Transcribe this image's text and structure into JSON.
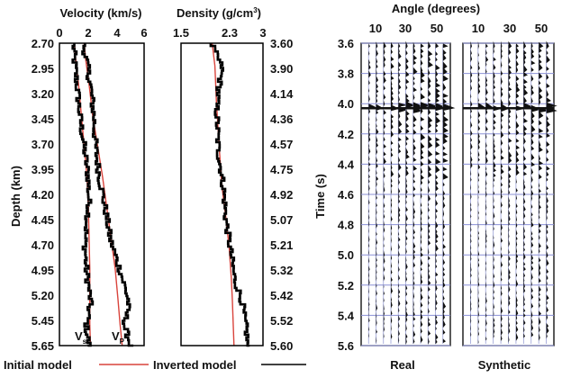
{
  "chart_data": [
    {
      "type": "line",
      "title": "Velocity (km/s)",
      "xlim": [
        0,
        6
      ],
      "xticks": [
        "0",
        "2",
        "4",
        "6"
      ],
      "ylabel": "Depth (km)",
      "ylim": [
        2.7,
        5.65
      ],
      "yticks": [
        "2.70",
        "2.95",
        "3.20",
        "3.45",
        "3.70",
        "3.95",
        "4.20",
        "4.45",
        "4.70",
        "4.95",
        "5.20",
        "5.45",
        "5.65"
      ],
      "series": [
        {
          "name": "Vs",
          "label_base": "V",
          "label_sub": "s",
          "kind": "initial",
          "color": "#d9443c",
          "x": [
            1.05,
            1.15,
            1.35,
            1.55,
            1.75,
            1.95,
            2.05,
            2.1,
            2.15,
            2.15,
            2.15,
            2.2
          ],
          "y": [
            2.7,
            2.85,
            3.1,
            3.4,
            3.7,
            4.0,
            4.3,
            4.6,
            4.9,
            5.2,
            5.45,
            5.65
          ]
        },
        {
          "name": "Vs inverted",
          "kind": "inverted",
          "color": "#000000",
          "x": [
            1.0,
            1.05,
            1.25,
            1.45,
            1.75,
            2.05,
            2.1,
            1.8,
            1.9,
            2.2,
            1.9,
            2.1
          ],
          "y": [
            2.7,
            2.85,
            3.1,
            3.4,
            3.7,
            4.0,
            4.3,
            4.6,
            4.9,
            5.2,
            5.45,
            5.65
          ]
        },
        {
          "name": "Vp",
          "label_base": "V",
          "label_sub": "P",
          "kind": "initial",
          "color": "#d9443c",
          "x": [
            1.75,
            1.85,
            2.1,
            2.35,
            2.7,
            3.05,
            3.35,
            3.65,
            3.95,
            4.15,
            4.3,
            4.45
          ],
          "y": [
            2.7,
            2.85,
            3.1,
            3.4,
            3.7,
            4.0,
            4.3,
            4.6,
            4.9,
            5.2,
            5.45,
            5.65
          ]
        },
        {
          "name": "Vp inverted",
          "kind": "inverted",
          "color": "#000000",
          "x": [
            1.7,
            1.9,
            2.2,
            2.45,
            2.55,
            2.85,
            3.25,
            3.6,
            4.3,
            4.9,
            4.6,
            5.1
          ],
          "y": [
            2.7,
            2.85,
            3.1,
            3.4,
            3.7,
            4.0,
            4.3,
            4.6,
            4.9,
            5.2,
            5.45,
            5.65
          ]
        }
      ]
    },
    {
      "type": "line",
      "title_base": "Density (g/cm",
      "title_sup": "3",
      "title_end": ")",
      "xlim": [
        1.5,
        3.0
      ],
      "xticks": [
        "1.5",
        "2.3",
        "3"
      ],
      "xtick_values": [
        1.5,
        2.3,
        3.0
      ],
      "ylim": [
        3.6,
        5.6
      ],
      "yticks": [
        "3.60",
        "3.90",
        "4.14",
        "4.36",
        "4.57",
        "4.75",
        "4.92",
        "5.07",
        "5.21",
        "5.32",
        "5.42",
        "5.52",
        "5.60"
      ],
      "series": [
        {
          "name": "Density initial",
          "kind": "initial",
          "color": "#d9443c",
          "x": [
            2.07,
            2.12,
            2.15,
            2.2,
            2.25,
            2.32,
            2.38,
            2.42,
            2.44,
            2.45,
            2.46,
            2.47
          ],
          "y": [
            3.6,
            3.75,
            4.0,
            4.3,
            4.55,
            4.75,
            4.95,
            5.15,
            5.3,
            5.4,
            5.5,
            5.6
          ]
        },
        {
          "name": "Density inverted",
          "kind": "inverted",
          "color": "#000000",
          "x": [
            2.06,
            2.25,
            2.15,
            2.18,
            2.28,
            2.32,
            2.4,
            2.48,
            2.62,
            2.65,
            2.7,
            2.72
          ],
          "y": [
            3.6,
            3.75,
            4.0,
            4.3,
            4.55,
            4.75,
            4.95,
            5.15,
            5.3,
            5.4,
            5.5,
            5.6
          ]
        }
      ]
    },
    {
      "type": "heatmap",
      "title": "Angle (degrees)",
      "xticks": [
        "10",
        "30",
        "50"
      ],
      "ylabel": "Time (s)",
      "ylim": [
        3.6,
        5.6
      ],
      "yticks": [
        "3.6",
        "3.8",
        "4.0",
        "4.2",
        "4.4",
        "4.6",
        "4.8",
        "5.0",
        "5.2",
        "5.4",
        "5.6"
      ],
      "panels": [
        {
          "name": "Real",
          "label": "Real"
        },
        {
          "name": "Synthetic",
          "label": "Synthetic"
        }
      ],
      "traces_per_panel": 11,
      "strong_event_time": 4.03
    }
  ],
  "legend": {
    "initial_label": "Initial model",
    "inverted_label": "Inverted model",
    "initial_color": "#d9443c",
    "inverted_color": "#000000"
  }
}
